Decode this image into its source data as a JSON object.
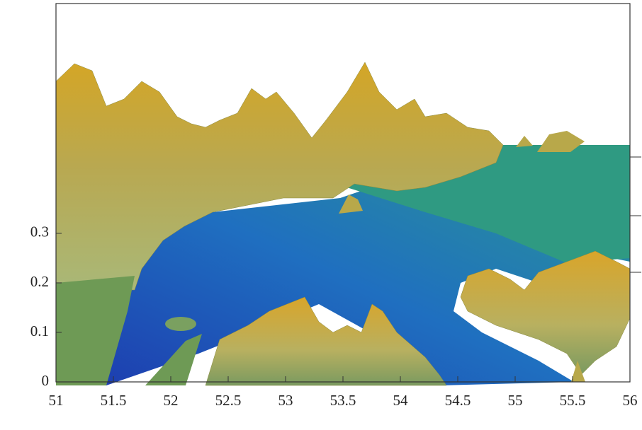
{
  "chart_data": {
    "type": "surface",
    "xlim": [
      51,
      56
    ],
    "xticks": [
      51,
      51.5,
      52,
      52.5,
      53,
      53.5,
      54,
      54.5,
      55,
      55.5,
      56
    ],
    "ylim": [
      0,
      0.764
    ],
    "yticks": [
      0,
      0.1,
      0.2,
      0.3
    ]
  }
}
